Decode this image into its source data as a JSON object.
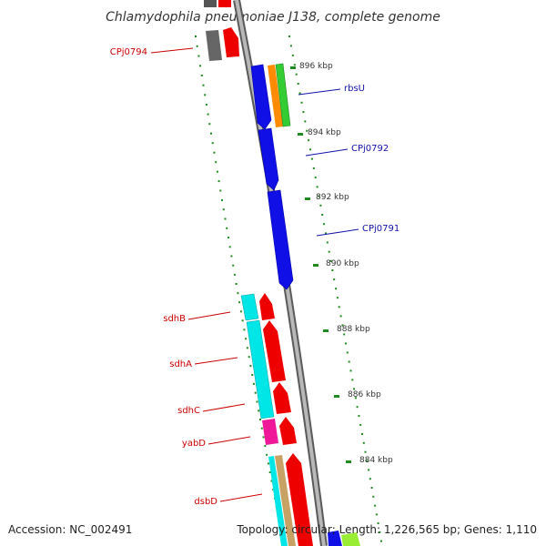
{
  "title": "Chlamydophila pneumoniae J138, complete genome",
  "footer": {
    "accession": "Accession: NC_002491",
    "summary": "Topology: circular; Length: 1,226,565 bp; Genes: 1,110"
  },
  "ticks": [
    "896 kbp",
    "894 kbp",
    "892 kbp",
    "890 kbp",
    "888 kbp",
    "886 kbp",
    "884 kbp"
  ],
  "labels_right": [
    "rbsU",
    "CPj0792",
    "CPj0791"
  ],
  "labels_left": [
    "CPj0794",
    "sdhB",
    "sdhA",
    "sdhC",
    "yabD",
    "dsbD"
  ],
  "colors": {
    "backbone": "#8a8a8a",
    "dots": "#1f8a1f",
    "forward_label": "#cc0000",
    "reverse_label": "#1111aa",
    "blue_gene": "#1010e6",
    "red_gene": "#ee0000",
    "cyan_gene": "#00e5e5",
    "magenta_gene": "#ee1899",
    "orange_gene": "#ff8c00",
    "green_gene": "#33cc33"
  }
}
